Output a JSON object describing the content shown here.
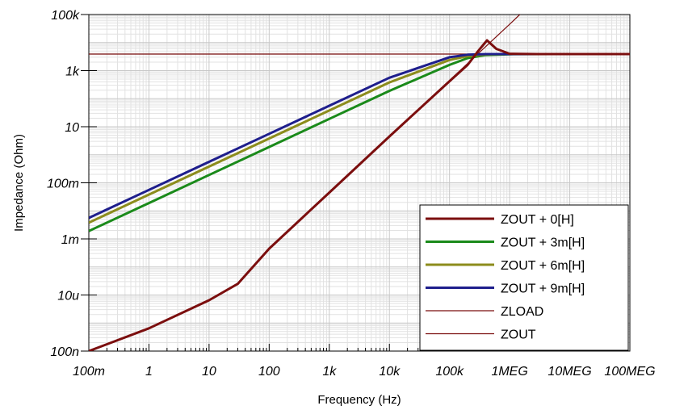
{
  "chart_data": {
    "type": "line",
    "xlabel": "Frequency (Hz)",
    "ylabel": "Impedance (Ohm)",
    "x_scale": "log",
    "y_scale": "log",
    "xlim": [
      0.1,
      100000000
    ],
    "ylim": [
      1e-07,
      100000
    ],
    "grid": true,
    "legend_position": "bottom-right",
    "x_ticks": [
      {
        "value": 0.1,
        "label": "100m"
      },
      {
        "value": 1,
        "label": "1"
      },
      {
        "value": 10,
        "label": "10"
      },
      {
        "value": 100,
        "label": "100"
      },
      {
        "value": 1000,
        "label": "1k"
      },
      {
        "value": 10000,
        "label": "10k"
      },
      {
        "value": 100000,
        "label": "100k"
      },
      {
        "value": 1000000,
        "label": "1MEG"
      },
      {
        "value": 10000000,
        "label": "10MEG"
      },
      {
        "value": 100000000,
        "label": "100MEG"
      }
    ],
    "y_ticks": [
      {
        "value": 1e-07,
        "label": "100n"
      },
      {
        "value": 1e-05,
        "label": "10u"
      },
      {
        "value": 0.001,
        "label": "1m"
      },
      {
        "value": 0.1,
        "label": "100m"
      },
      {
        "value": 10,
        "label": "10"
      },
      {
        "value": 1000,
        "label": "1k"
      },
      {
        "value": 100000,
        "label": "100k"
      }
    ],
    "series": [
      {
        "name": "ZOUT + 0[H]",
        "color": "#7b0e0e",
        "width": 3,
        "x": [
          0.1,
          1,
          10,
          30,
          100,
          1000,
          10000,
          100000,
          200000,
          300000,
          420000,
          600000,
          1000000,
          3000000,
          10000000,
          100000000
        ],
        "y": [
          1e-07,
          6.5e-07,
          6.5e-06,
          2.5e-05,
          0.00045,
          0.045,
          4.5,
          420,
          1600,
          5000,
          12000,
          6000,
          4000,
          3900,
          3900,
          3900
        ]
      },
      {
        "name": "ZOUT + 3m[H]",
        "color": "#1a8a1a",
        "width": 3,
        "x": [
          0.1,
          1,
          10,
          100,
          1000,
          10000,
          100000,
          200000,
          400000,
          1000000,
          5000000,
          100000000
        ],
        "y": [
          0.0019,
          0.019,
          0.19,
          1.9,
          19,
          190,
          1600,
          2800,
          3600,
          3850,
          3900,
          3900
        ]
      },
      {
        "name": "ZOUT + 6m[H]",
        "color": "#8c8c1c",
        "width": 3,
        "x": [
          0.1,
          1,
          10,
          100,
          1000,
          10000,
          100000,
          200000,
          400000,
          1000000,
          5000000,
          100000000
        ],
        "y": [
          0.0038,
          0.038,
          0.38,
          3.8,
          38,
          380,
          2400,
          3300,
          3800,
          3900,
          3900,
          3900
        ]
      },
      {
        "name": "ZOUT + 9m[H]",
        "color": "#1e1e8c",
        "width": 3,
        "x": [
          0.1,
          1,
          10,
          100,
          1000,
          10000,
          100000,
          200000,
          400000,
          1000000,
          5000000,
          100000000
        ],
        "y": [
          0.0056,
          0.056,
          0.56,
          5.6,
          56,
          560,
          3000,
          3700,
          3900,
          3900,
          3900,
          3900
        ]
      },
      {
        "name": "ZLOAD",
        "color": "#7b0e0e",
        "width": 1.2,
        "x": [
          0.1,
          100000000
        ],
        "y": [
          3900,
          3900
        ]
      },
      {
        "name": "ZOUT",
        "color": "#7b0e0e",
        "width": 1.2,
        "x": [
          0.1,
          1,
          10,
          30,
          100,
          1000,
          10000,
          100000,
          1000000,
          1800000
        ],
        "y": [
          1e-07,
          6.5e-07,
          6.5e-06,
          2.5e-05,
          0.00045,
          0.045,
          4.5,
          450,
          45000,
          150000
        ]
      }
    ]
  }
}
